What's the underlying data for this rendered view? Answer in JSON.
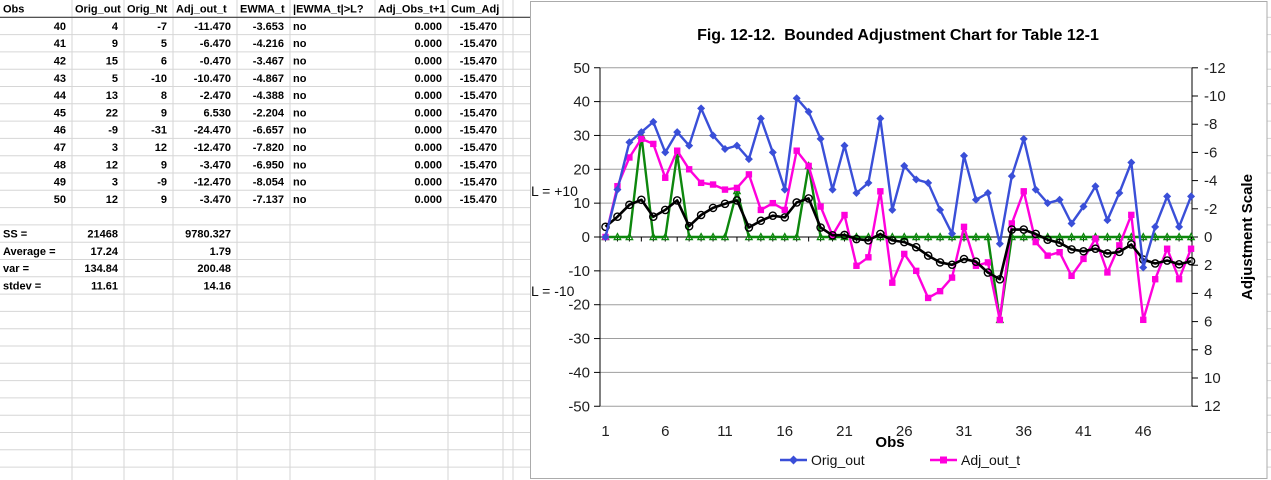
{
  "sheet": {
    "table": {
      "headers": [
        "Obs",
        "Orig_out",
        "Orig_Nt",
        "Adj_out_t",
        "EWMA_t",
        "|EWMA_t|>L?",
        "Adj_Obs_t+1",
        "Cum_Adj"
      ],
      "rows": [
        [
          "40",
          "4",
          "-7",
          "-11.470",
          "-3.653",
          "no",
          "0.000",
          "-15.470"
        ],
        [
          "41",
          "9",
          "5",
          "-6.470",
          "-4.216",
          "no",
          "0.000",
          "-15.470"
        ],
        [
          "42",
          "15",
          "6",
          "-0.470",
          "-3.467",
          "no",
          "0.000",
          "-15.470"
        ],
        [
          "43",
          "5",
          "-10",
          "-10.470",
          "-4.867",
          "no",
          "0.000",
          "-15.470"
        ],
        [
          "44",
          "13",
          "8",
          "-2.470",
          "-4.388",
          "no",
          "0.000",
          "-15.470"
        ],
        [
          "45",
          "22",
          "9",
          "6.530",
          "-2.204",
          "no",
          "0.000",
          "-15.470"
        ],
        [
          "46",
          "-9",
          "-31",
          "-24.470",
          "-6.657",
          "no",
          "0.000",
          "-15.470"
        ],
        [
          "47",
          "3",
          "12",
          "-12.470",
          "-7.820",
          "no",
          "0.000",
          "-15.470"
        ],
        [
          "48",
          "12",
          "9",
          "-3.470",
          "-6.950",
          "no",
          "0.000",
          "-15.470"
        ],
        [
          "49",
          "3",
          "-9",
          "-12.470",
          "-8.054",
          "no",
          "0.000",
          "-15.470"
        ],
        [
          "50",
          "12",
          "9",
          "-3.470",
          "-7.137",
          "no",
          "0.000",
          "-15.470"
        ]
      ],
      "stats": [
        [
          "SS =",
          "21468",
          "9780.327"
        ],
        [
          "Average =",
          "17.24",
          "1.79"
        ],
        [
          "var =",
          "134.84",
          "200.48"
        ],
        [
          "stdev =",
          "11.61",
          "14.16"
        ]
      ]
    }
  },
  "chart_data": {
    "type": "line",
    "title": "Fig. 12-12.  Bounded Adjustment Chart for Table 12-1",
    "xlabel": "Obs",
    "ylabel_right": "Adjustment Scale",
    "x": [
      1,
      2,
      3,
      4,
      5,
      6,
      7,
      8,
      9,
      10,
      11,
      12,
      13,
      14,
      15,
      16,
      17,
      18,
      19,
      20,
      21,
      22,
      23,
      24,
      25,
      26,
      27,
      28,
      29,
      30,
      31,
      32,
      33,
      34,
      35,
      36,
      37,
      38,
      39,
      40,
      41,
      42,
      43,
      44,
      45,
      46,
      47,
      48,
      49,
      50
    ],
    "series": [
      {
        "name": "Orig_out",
        "marker": "diamond",
        "color": "#3a4fd8",
        "values": [
          0,
          14,
          28,
          31,
          34,
          25,
          31,
          27,
          38,
          30,
          26,
          27,
          23,
          35,
          25,
          14,
          41,
          37,
          29,
          14,
          27,
          13,
          16,
          35,
          8,
          21,
          17,
          16,
          8,
          1,
          24,
          11,
          13,
          -2,
          18,
          29,
          14,
          10,
          11,
          4,
          9,
          15,
          5,
          13,
          22,
          -9,
          3,
          12,
          3,
          12
        ]
      },
      {
        "name": "Adj_out_t",
        "marker": "square",
        "color": "#ff00dc",
        "values": [
          0,
          15,
          23.5,
          29,
          27.5,
          17.5,
          25.5,
          20,
          16,
          15.5,
          14,
          14.5,
          18.5,
          8,
          10,
          8,
          25.5,
          21,
          9,
          0.5,
          6.5,
          -8.5,
          -6,
          13.5,
          -13.5,
          -5,
          -10,
          -18,
          -16,
          -12,
          3,
          -8.5,
          -7.5,
          -24.5,
          4,
          13.5,
          -1.5,
          -5.5,
          -4.5,
          -11.47,
          -6.47,
          -0.47,
          -10.47,
          -2.47,
          6.53,
          -24.47,
          -12.47,
          -3.47,
          -12.47,
          -3.47
        ]
      },
      {
        "name": "EWMA_t",
        "marker": "circle",
        "color": "#000000",
        "values": [
          3,
          6,
          9.5,
          11,
          6,
          8,
          10.8,
          3.2,
          6.5,
          8.6,
          9.8,
          10.8,
          2.8,
          4.8,
          6.3,
          5.8,
          10.2,
          11.4,
          2.8,
          0.5,
          0.6,
          -0.6,
          -1,
          0.9,
          -1,
          -1.5,
          -3,
          -5.5,
          -7.5,
          -8.2,
          -6.5,
          -7.3,
          -10.5,
          -12.5,
          2.2,
          2.2,
          0.9,
          -0.8,
          -1.7,
          -3.653,
          -4.216,
          -3.467,
          -4.867,
          -4.388,
          -2.204,
          -6.657,
          -7.82,
          -6.95,
          -8.054,
          -7.137
        ]
      },
      {
        "name": "Adj_Obs_t+1",
        "marker": "triangle",
        "color": "#0d870d",
        "values": [
          0,
          0,
          0,
          30,
          0,
          0,
          24.5,
          0,
          0,
          0,
          0,
          13.6,
          0,
          0,
          0,
          0,
          0,
          21,
          0,
          0,
          0,
          0,
          0,
          0,
          0,
          0,
          0,
          0,
          0,
          0,
          0,
          0,
          0,
          -24.5,
          0,
          0,
          0,
          0,
          0,
          0,
          0,
          0,
          0,
          0,
          0,
          0,
          0,
          0,
          0,
          0
        ]
      }
    ],
    "ylim_left": [
      -50,
      50
    ],
    "yticks_left": [
      50,
      40,
      30,
      20,
      10,
      0,
      -10,
      -20,
      -30,
      -40,
      -50
    ],
    "yticks_right": [
      -12,
      -10,
      -8,
      -6,
      -4,
      -2,
      0,
      2,
      4,
      6,
      8,
      10,
      12
    ],
    "xticks": [
      1,
      6,
      11,
      16,
      21,
      26,
      31,
      36,
      41,
      46
    ],
    "grid": "horizontal",
    "legend_position": "bottom",
    "legend": [
      "Orig_out",
      "Adj_out_t"
    ],
    "annotations": {
      "upper_limit": "L = +10",
      "lower_limit": "L = -10"
    },
    "colors": {
      "gridline": "#9e9e9e",
      "sheet_grid": "#d6d6d6",
      "axis": "#000000",
      "header_border": "#3c3c3c",
      "chart_border": "#ababab"
    }
  }
}
